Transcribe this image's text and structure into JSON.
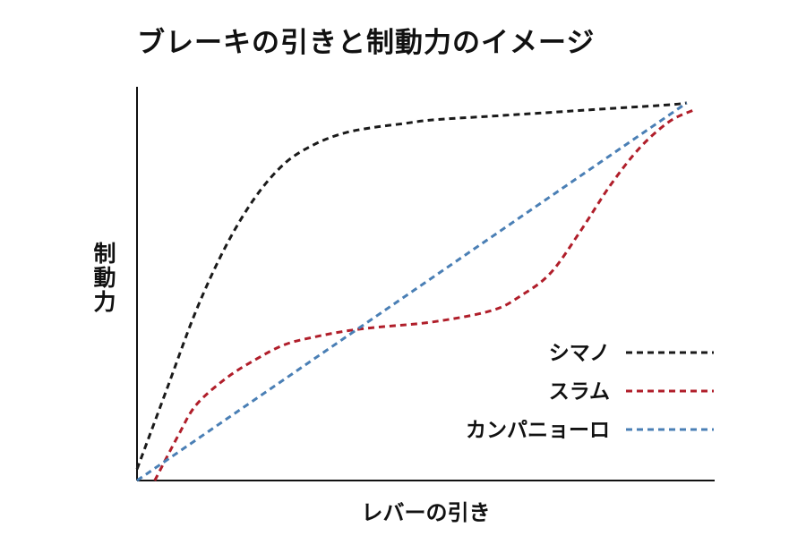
{
  "chart_data": {
    "type": "line",
    "title": "ブレーキの引きと制動力のイメージ",
    "xlabel": "レバーの引き",
    "ylabel": "制動力",
    "xlim": [
      0,
      1
    ],
    "ylim": [
      0,
      1
    ],
    "grid": false,
    "legend_position": "bottom-right",
    "series": [
      {
        "name": "シマノ",
        "color": "#1a1a1a",
        "x": [
          0,
          0.05,
          0.1,
          0.15,
          0.2,
          0.25,
          0.3,
          0.35,
          0.4,
          0.45,
          0.5,
          0.6,
          0.7,
          0.8,
          0.9,
          0.93
        ],
        "y": [
          0.03,
          0.24,
          0.45,
          0.62,
          0.75,
          0.84,
          0.89,
          0.92,
          0.935,
          0.945,
          0.955,
          0.965,
          0.975,
          0.985,
          0.995,
          1.0
        ]
      },
      {
        "name": "スラム",
        "color": "#b01e2a",
        "x": [
          0.03,
          0.07,
          0.1,
          0.15,
          0.2,
          0.25,
          0.3,
          0.35,
          0.4,
          0.5,
          0.6,
          0.65,
          0.7,
          0.75,
          0.8,
          0.85,
          0.9,
          0.94
        ],
        "y": [
          0.0,
          0.12,
          0.2,
          0.27,
          0.32,
          0.36,
          0.38,
          0.395,
          0.405,
          0.42,
          0.45,
          0.49,
          0.55,
          0.66,
          0.78,
          0.88,
          0.95,
          0.98
        ]
      },
      {
        "name": "カンパニョーロ",
        "color": "#4a7fb5",
        "x": [
          0,
          0.93
        ],
        "y": [
          0,
          1.0
        ]
      }
    ]
  }
}
